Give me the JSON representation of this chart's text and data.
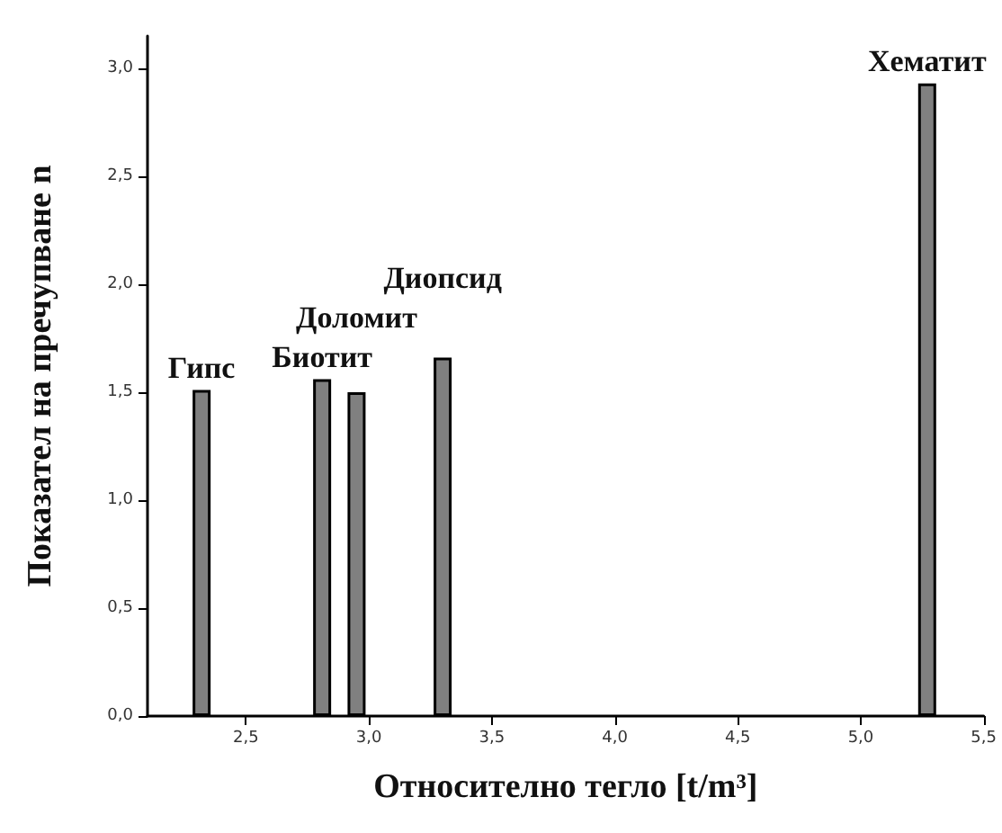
{
  "chart_data": {
    "type": "bar",
    "xlabel": "Относително тегло [t/m³]",
    "ylabel": "Показател на пречупване n",
    "x": [
      2.32,
      2.81,
      2.95,
      3.3,
      5.27
    ],
    "values": [
      1.51,
      1.56,
      1.5,
      1.66,
      2.93
    ],
    "color": "#808080",
    "xlim": [
      2.1,
      5.5
    ],
    "xticks": [
      {
        "value": 2.5,
        "label": "2,5"
      },
      {
        "value": 3.0,
        "label": "3,0"
      },
      {
        "value": 3.5,
        "label": "3,5"
      },
      {
        "value": 4.0,
        "label": "4,0"
      },
      {
        "value": 4.5,
        "label": "4,5"
      },
      {
        "value": 5.0,
        "label": "5,0"
      },
      {
        "value": 5.5,
        "label": "5,5"
      }
    ],
    "ylim": [
      0,
      3.15
    ],
    "yticks": [
      {
        "value": 0,
        "label": "0,0"
      },
      {
        "value": 0.5,
        "label": "0,5"
      },
      {
        "value": 1.0,
        "label": "1,0"
      },
      {
        "value": 1.5,
        "label": "1,5"
      },
      {
        "value": 2.0,
        "label": "2,0"
      },
      {
        "value": 2.5,
        "label": "2,5"
      },
      {
        "value": 3.0,
        "label": "3,0"
      }
    ],
    "annotations": [
      {
        "text": "Гипс",
        "x": 2.32,
        "y": 1.51
      },
      {
        "text": "Биотит",
        "x": 2.81,
        "y": 1.56
      },
      {
        "text": "Доломит",
        "x": 2.95,
        "y": 1.5
      },
      {
        "text": "Диопсид",
        "x": 3.3,
        "y": 1.66
      },
      {
        "text": "Хематит",
        "x": 5.27,
        "y": 2.93
      }
    ]
  }
}
